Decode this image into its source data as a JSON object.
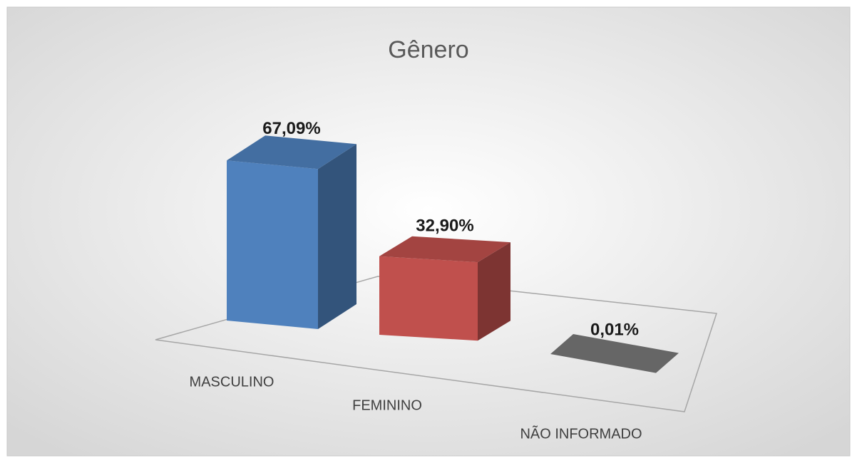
{
  "chart_data": {
    "type": "bar3d",
    "title": "Gênero",
    "categories": [
      "MASCULINO",
      "FEMININO",
      "NÃO INFORMADO"
    ],
    "values": [
      67.09,
      32.9,
      0.01
    ],
    "value_labels": [
      "67,09%",
      "32,90%",
      "0,01%"
    ],
    "colors": [
      "#4f81bd",
      "#c0504d",
      "#7f7f7f"
    ]
  }
}
